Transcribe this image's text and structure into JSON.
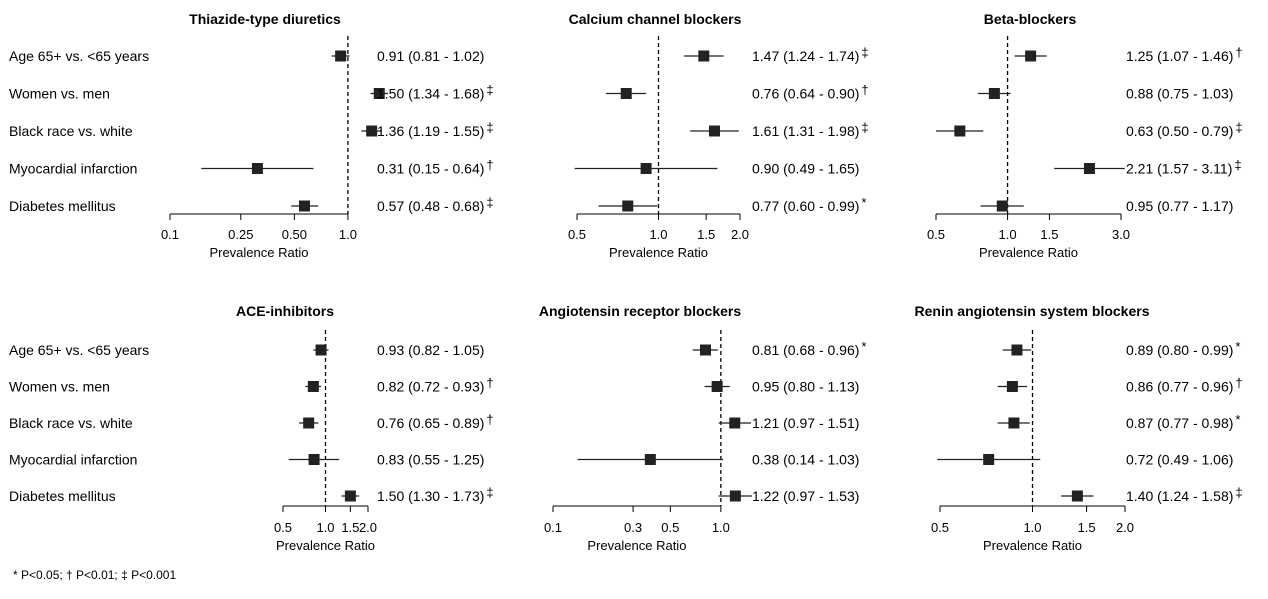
{
  "figure": {
    "footnote": "* P<0.05; † P<0.01; ‡ P<0.001",
    "row_labels": [
      "Age 65+ vs. <65 years",
      "Women vs. men",
      "Black race vs. white",
      "Myocardial infarction",
      "Diabetes mellitus"
    ],
    "colors": {
      "marker": "#222222",
      "axis": "#000000",
      "text": "#000000"
    }
  },
  "chart_data": [
    {
      "type": "forest",
      "title": "Thiazide-type diuretics",
      "xlabel": "Prevalence Ratio",
      "scale": "log",
      "xlim": [
        0.1,
        1.2
      ],
      "reference": 1.0,
      "ticks": [
        0.1,
        0.25,
        0.5,
        1.0
      ],
      "tick_labels": [
        "0.1",
        "0.25",
        "0.50",
        "1.0"
      ],
      "rows": [
        {
          "label": "Age 65+ vs. <65 years",
          "estimate": 0.91,
          "low": 0.81,
          "high": 1.02,
          "text": "0.91 (0.81 - 1.02)",
          "sig": ""
        },
        {
          "label": "Women vs. men",
          "estimate": 1.5,
          "low": 1.34,
          "high": 1.68,
          "text": "1.50 (1.34 - 1.68)",
          "sig": "‡"
        },
        {
          "label": "Black race vs. white",
          "estimate": 1.36,
          "low": 1.19,
          "high": 1.55,
          "text": "1.36 (1.19 - 1.55)",
          "sig": "‡"
        },
        {
          "label": "Myocardial infarction",
          "estimate": 0.31,
          "low": 0.15,
          "high": 0.64,
          "text": "0.31 (0.15 - 0.64)",
          "sig": "†"
        },
        {
          "label": "Diabetes mellitus",
          "estimate": 0.57,
          "low": 0.48,
          "high": 0.68,
          "text": "0.57 (0.48 - 0.68)",
          "sig": "‡"
        }
      ]
    },
    {
      "type": "forest",
      "title": "Calcium channel blockers",
      "xlabel": "Prevalence Ratio",
      "scale": "log",
      "xlim": [
        0.5,
        2.0
      ],
      "reference": 1.0,
      "ticks": [
        0.5,
        1.0,
        1.5,
        2.0
      ],
      "tick_labels": [
        "0.5",
        "1.0",
        "1.5",
        "2.0"
      ],
      "rows": [
        {
          "label": "Age 65+ vs. <65 years",
          "estimate": 1.47,
          "low": 1.24,
          "high": 1.74,
          "text": "1.47 (1.24 - 1.74)",
          "sig": "‡"
        },
        {
          "label": "Women vs. men",
          "estimate": 0.76,
          "low": 0.64,
          "high": 0.9,
          "text": "0.76 (0.64 - 0.90)",
          "sig": "†"
        },
        {
          "label": "Black race vs. white",
          "estimate": 1.61,
          "low": 1.31,
          "high": 1.98,
          "text": "1.61 (1.31 - 1.98)",
          "sig": "‡"
        },
        {
          "label": "Myocardial infarction",
          "estimate": 0.9,
          "low": 0.49,
          "high": 1.65,
          "text": "0.90 (0.49 - 1.65)",
          "sig": ""
        },
        {
          "label": "Diabetes mellitus",
          "estimate": 0.77,
          "low": 0.6,
          "high": 0.99,
          "text": "0.77 (0.60 - 0.99)",
          "sig": "*"
        }
      ]
    },
    {
      "type": "forest",
      "title": "Beta-blockers",
      "xlabel": "Prevalence Ratio",
      "scale": "log",
      "xlim": [
        0.5,
        3.0
      ],
      "reference": 1.0,
      "ticks": [
        0.5,
        1.0,
        1.5,
        3.0
      ],
      "tick_labels": [
        "0.5",
        "1.0",
        "1.5",
        "3.0"
      ],
      "rows": [
        {
          "label": "Age 65+ vs. <65 years",
          "estimate": 1.25,
          "low": 1.07,
          "high": 1.46,
          "text": "1.25 (1.07 - 1.46)",
          "sig": "†"
        },
        {
          "label": "Women vs. men",
          "estimate": 0.88,
          "low": 0.75,
          "high": 1.03,
          "text": "0.88 (0.75 - 1.03)",
          "sig": ""
        },
        {
          "label": "Black race vs. white",
          "estimate": 0.63,
          "low": 0.5,
          "high": 0.79,
          "text": "0.63 (0.50 - 0.79)",
          "sig": "‡"
        },
        {
          "label": "Myocardial infarction",
          "estimate": 2.21,
          "low": 1.57,
          "high": 3.11,
          "text": "2.21 (1.57 - 3.11)",
          "sig": "‡"
        },
        {
          "label": "Diabetes mellitus",
          "estimate": 0.95,
          "low": 0.77,
          "high": 1.17,
          "text": "0.95 (0.77 - 1.17)",
          "sig": ""
        }
      ]
    },
    {
      "type": "forest",
      "title": "ACE-inhibitors",
      "xlabel": "Prevalence Ratio",
      "scale": "log",
      "xlim": [
        0.5,
        2.0
      ],
      "reference": 1.0,
      "ticks": [
        0.5,
        1.0,
        1.5,
        2.0
      ],
      "tick_labels": [
        "0.5",
        "1.0",
        "1.5",
        "2.0"
      ],
      "rows": [
        {
          "label": "Age 65+ vs. <65 years",
          "estimate": 0.93,
          "low": 0.82,
          "high": 1.05,
          "text": "0.93 (0.82 - 1.05)",
          "sig": ""
        },
        {
          "label": "Women vs. men",
          "estimate": 0.82,
          "low": 0.72,
          "high": 0.93,
          "text": "0.82 (0.72 - 0.93)",
          "sig": "†"
        },
        {
          "label": "Black race vs. white",
          "estimate": 0.76,
          "low": 0.65,
          "high": 0.89,
          "text": "0.76 (0.65 - 0.89)",
          "sig": "†"
        },
        {
          "label": "Myocardial infarction",
          "estimate": 0.83,
          "low": 0.55,
          "high": 1.25,
          "text": "0.83 (0.55 - 1.25)",
          "sig": ""
        },
        {
          "label": "Diabetes mellitus",
          "estimate": 1.5,
          "low": 1.3,
          "high": 1.73,
          "text": "1.50 (1.30 - 1.73)",
          "sig": "‡"
        }
      ]
    },
    {
      "type": "forest",
      "title": "Angiotensin receptor blockers",
      "xlabel": "Prevalence Ratio",
      "scale": "log",
      "xlim": [
        0.1,
        1.3
      ],
      "reference": 1.0,
      "ticks": [
        0.1,
        0.3,
        0.5,
        1.0
      ],
      "tick_labels": [
        "0.1",
        "0.3",
        "0.5",
        "1.0"
      ],
      "rows": [
        {
          "label": "Age 65+ vs. <65 years",
          "estimate": 0.81,
          "low": 0.68,
          "high": 0.96,
          "text": "0.81 (0.68 - 0.96)",
          "sig": "*"
        },
        {
          "label": "Women vs. men",
          "estimate": 0.95,
          "low": 0.8,
          "high": 1.13,
          "text": "0.95 (0.80 - 1.13)",
          "sig": ""
        },
        {
          "label": "Black race vs. white",
          "estimate": 1.21,
          "low": 0.97,
          "high": 1.51,
          "text": "1.21 (0.97 - 1.51)",
          "sig": ""
        },
        {
          "label": "Myocardial infarction",
          "estimate": 0.38,
          "low": 0.14,
          "high": 1.03,
          "text": "0.38 (0.14 - 1.03)",
          "sig": ""
        },
        {
          "label": "Diabetes mellitus",
          "estimate": 1.22,
          "low": 0.97,
          "high": 1.53,
          "text": "1.22 (0.97 - 1.53)",
          "sig": ""
        }
      ]
    },
    {
      "type": "forest",
      "title": "Renin angiotensin system blockers",
      "xlabel": "Prevalence Ratio",
      "scale": "log",
      "xlim": [
        0.5,
        2.0
      ],
      "reference": 1.0,
      "ticks": [
        0.5,
        1.0,
        1.5,
        2.0
      ],
      "tick_labels": [
        "0.5",
        "1.0",
        "1.5",
        "2.0"
      ],
      "rows": [
        {
          "label": "Age 65+ vs. <65 years",
          "estimate": 0.89,
          "low": 0.8,
          "high": 0.99,
          "text": "0.89 (0.80 - 0.99)",
          "sig": "*"
        },
        {
          "label": "Women vs. men",
          "estimate": 0.86,
          "low": 0.77,
          "high": 0.96,
          "text": "0.86 (0.77 - 0.96)",
          "sig": "†"
        },
        {
          "label": "Black race vs. white",
          "estimate": 0.87,
          "low": 0.77,
          "high": 0.98,
          "text": "0.87 (0.77 - 0.98)",
          "sig": "*"
        },
        {
          "label": "Myocardial infarction",
          "estimate": 0.72,
          "low": 0.49,
          "high": 1.06,
          "text": "0.72 (0.49 - 1.06)",
          "sig": ""
        },
        {
          "label": "Diabetes mellitus",
          "estimate": 1.4,
          "low": 1.24,
          "high": 1.58,
          "text": "1.40 (1.24 - 1.58)",
          "sig": "‡"
        }
      ]
    }
  ]
}
